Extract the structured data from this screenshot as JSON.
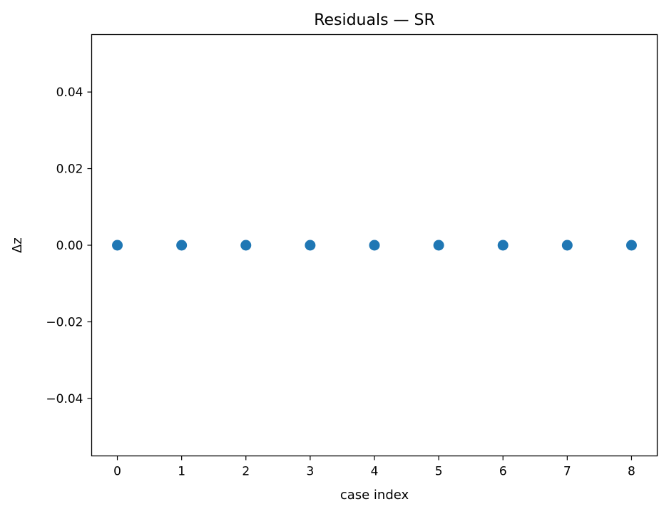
{
  "chart_data": {
    "type": "scatter",
    "title": "Residuals — SR",
    "xlabel": "case index",
    "ylabel": "Δz",
    "x": [
      0,
      1,
      2,
      3,
      4,
      5,
      6,
      7,
      8
    ],
    "y": [
      0,
      0,
      0,
      0,
      0,
      0,
      0,
      0,
      0
    ],
    "xlim": [
      -0.4,
      8.4
    ],
    "ylim": [
      -0.055,
      0.055
    ],
    "xticks": [
      0,
      1,
      2,
      3,
      4,
      5,
      6,
      7,
      8
    ],
    "xtick_labels": [
      "0",
      "1",
      "2",
      "3",
      "4",
      "5",
      "6",
      "7",
      "8"
    ],
    "yticks": [
      0.04,
      0.02,
      0.0,
      -0.02,
      -0.04
    ],
    "ytick_labels": [
      "0.04",
      "0.02",
      "0.00",
      "−0.02",
      "−0.04"
    ],
    "grid": false,
    "legend": false,
    "marker_color": "#1f77b4"
  }
}
